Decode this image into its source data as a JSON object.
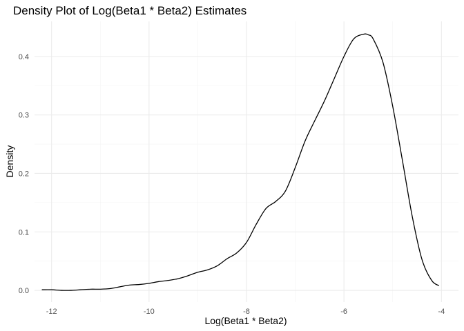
{
  "chart_data": {
    "type": "line",
    "title": "Density Plot of Log(Beta1 * Beta2) Estimates",
    "xlabel": "Log(Beta1 * Beta2)",
    "ylabel": "Density",
    "xlim": [
      -12.35,
      -3.65
    ],
    "ylim": [
      -0.02,
      0.46
    ],
    "x_ticks": [
      -12,
      -10,
      -8,
      -6,
      -4
    ],
    "x_tick_labels": [
      "-12",
      "-10",
      "-8",
      "-6",
      "-4"
    ],
    "y_ticks": [
      0.0,
      0.1,
      0.2,
      0.3,
      0.4
    ],
    "y_tick_labels": [
      "0.0",
      "0.1",
      "0.2",
      "0.3",
      "0.4"
    ],
    "grid": true,
    "legend": "none",
    "series": [
      {
        "color": "#000000",
        "x": [
          -12.2,
          -12.0,
          -11.8,
          -11.6,
          -11.4,
          -11.2,
          -11.0,
          -10.8,
          -10.6,
          -10.4,
          -10.2,
          -10.0,
          -9.8,
          -9.6,
          -9.4,
          -9.2,
          -9.0,
          -8.8,
          -8.6,
          -8.4,
          -8.2,
          -8.0,
          -7.8,
          -7.6,
          -7.4,
          -7.2,
          -7.0,
          -6.8,
          -6.6,
          -6.4,
          -6.2,
          -6.0,
          -5.8,
          -5.6,
          -5.5,
          -5.4,
          -5.2,
          -5.0,
          -4.8,
          -4.6,
          -4.4,
          -4.2,
          -4.05
        ],
        "y": [
          0.001,
          0.001,
          0.0,
          0.0,
          0.001,
          0.002,
          0.002,
          0.003,
          0.006,
          0.009,
          0.01,
          0.012,
          0.015,
          0.017,
          0.02,
          0.025,
          0.031,
          0.035,
          0.042,
          0.054,
          0.064,
          0.082,
          0.113,
          0.14,
          0.152,
          0.17,
          0.21,
          0.255,
          0.29,
          0.324,
          0.362,
          0.4,
          0.43,
          0.438,
          0.437,
          0.43,
          0.39,
          0.315,
          0.222,
          0.127,
          0.053,
          0.017,
          0.008
        ]
      }
    ]
  }
}
